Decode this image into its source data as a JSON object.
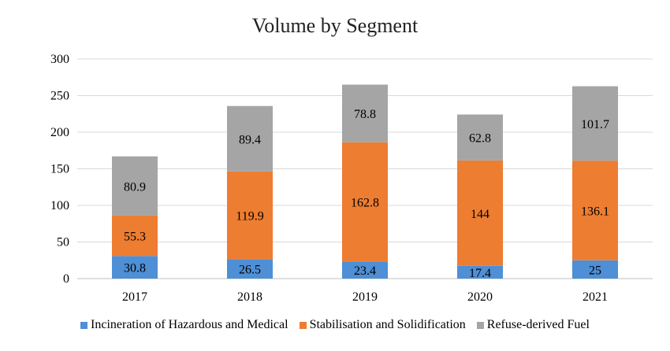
{
  "chart_data": {
    "type": "bar",
    "stacked": true,
    "title": "Volume by Segment",
    "xlabel": "",
    "ylabel": "",
    "categories": [
      "2017",
      "2018",
      "2019",
      "2020",
      "2021"
    ],
    "ylim": [
      0,
      300
    ],
    "yticks": [
      "0",
      "50",
      "100",
      "150",
      "200",
      "250",
      "300"
    ],
    "grid": true,
    "legend_position": "bottom",
    "series": [
      {
        "name": "Incineration of Hazardous and Medical",
        "color": "#4e8fd6",
        "values": [
          30.8,
          26.5,
          23.4,
          17.4,
          25
        ],
        "labels": [
          "30.8",
          "26.5",
          "23.4",
          "17.4",
          "25"
        ]
      },
      {
        "name": "Stabilisation and Solidification",
        "color": "#ed7d31",
        "values": [
          55.3,
          119.9,
          162.8,
          144,
          136.1
        ],
        "labels": [
          "55.3",
          "119.9",
          "162.8",
          "144",
          "136.1"
        ]
      },
      {
        "name": "Refuse-derived Fuel",
        "color": "#a5a5a5",
        "values": [
          80.9,
          89.4,
          78.8,
          62.8,
          101.7
        ],
        "labels": [
          "80.9",
          "89.4",
          "78.8",
          "62.8",
          "101.7"
        ]
      }
    ]
  }
}
